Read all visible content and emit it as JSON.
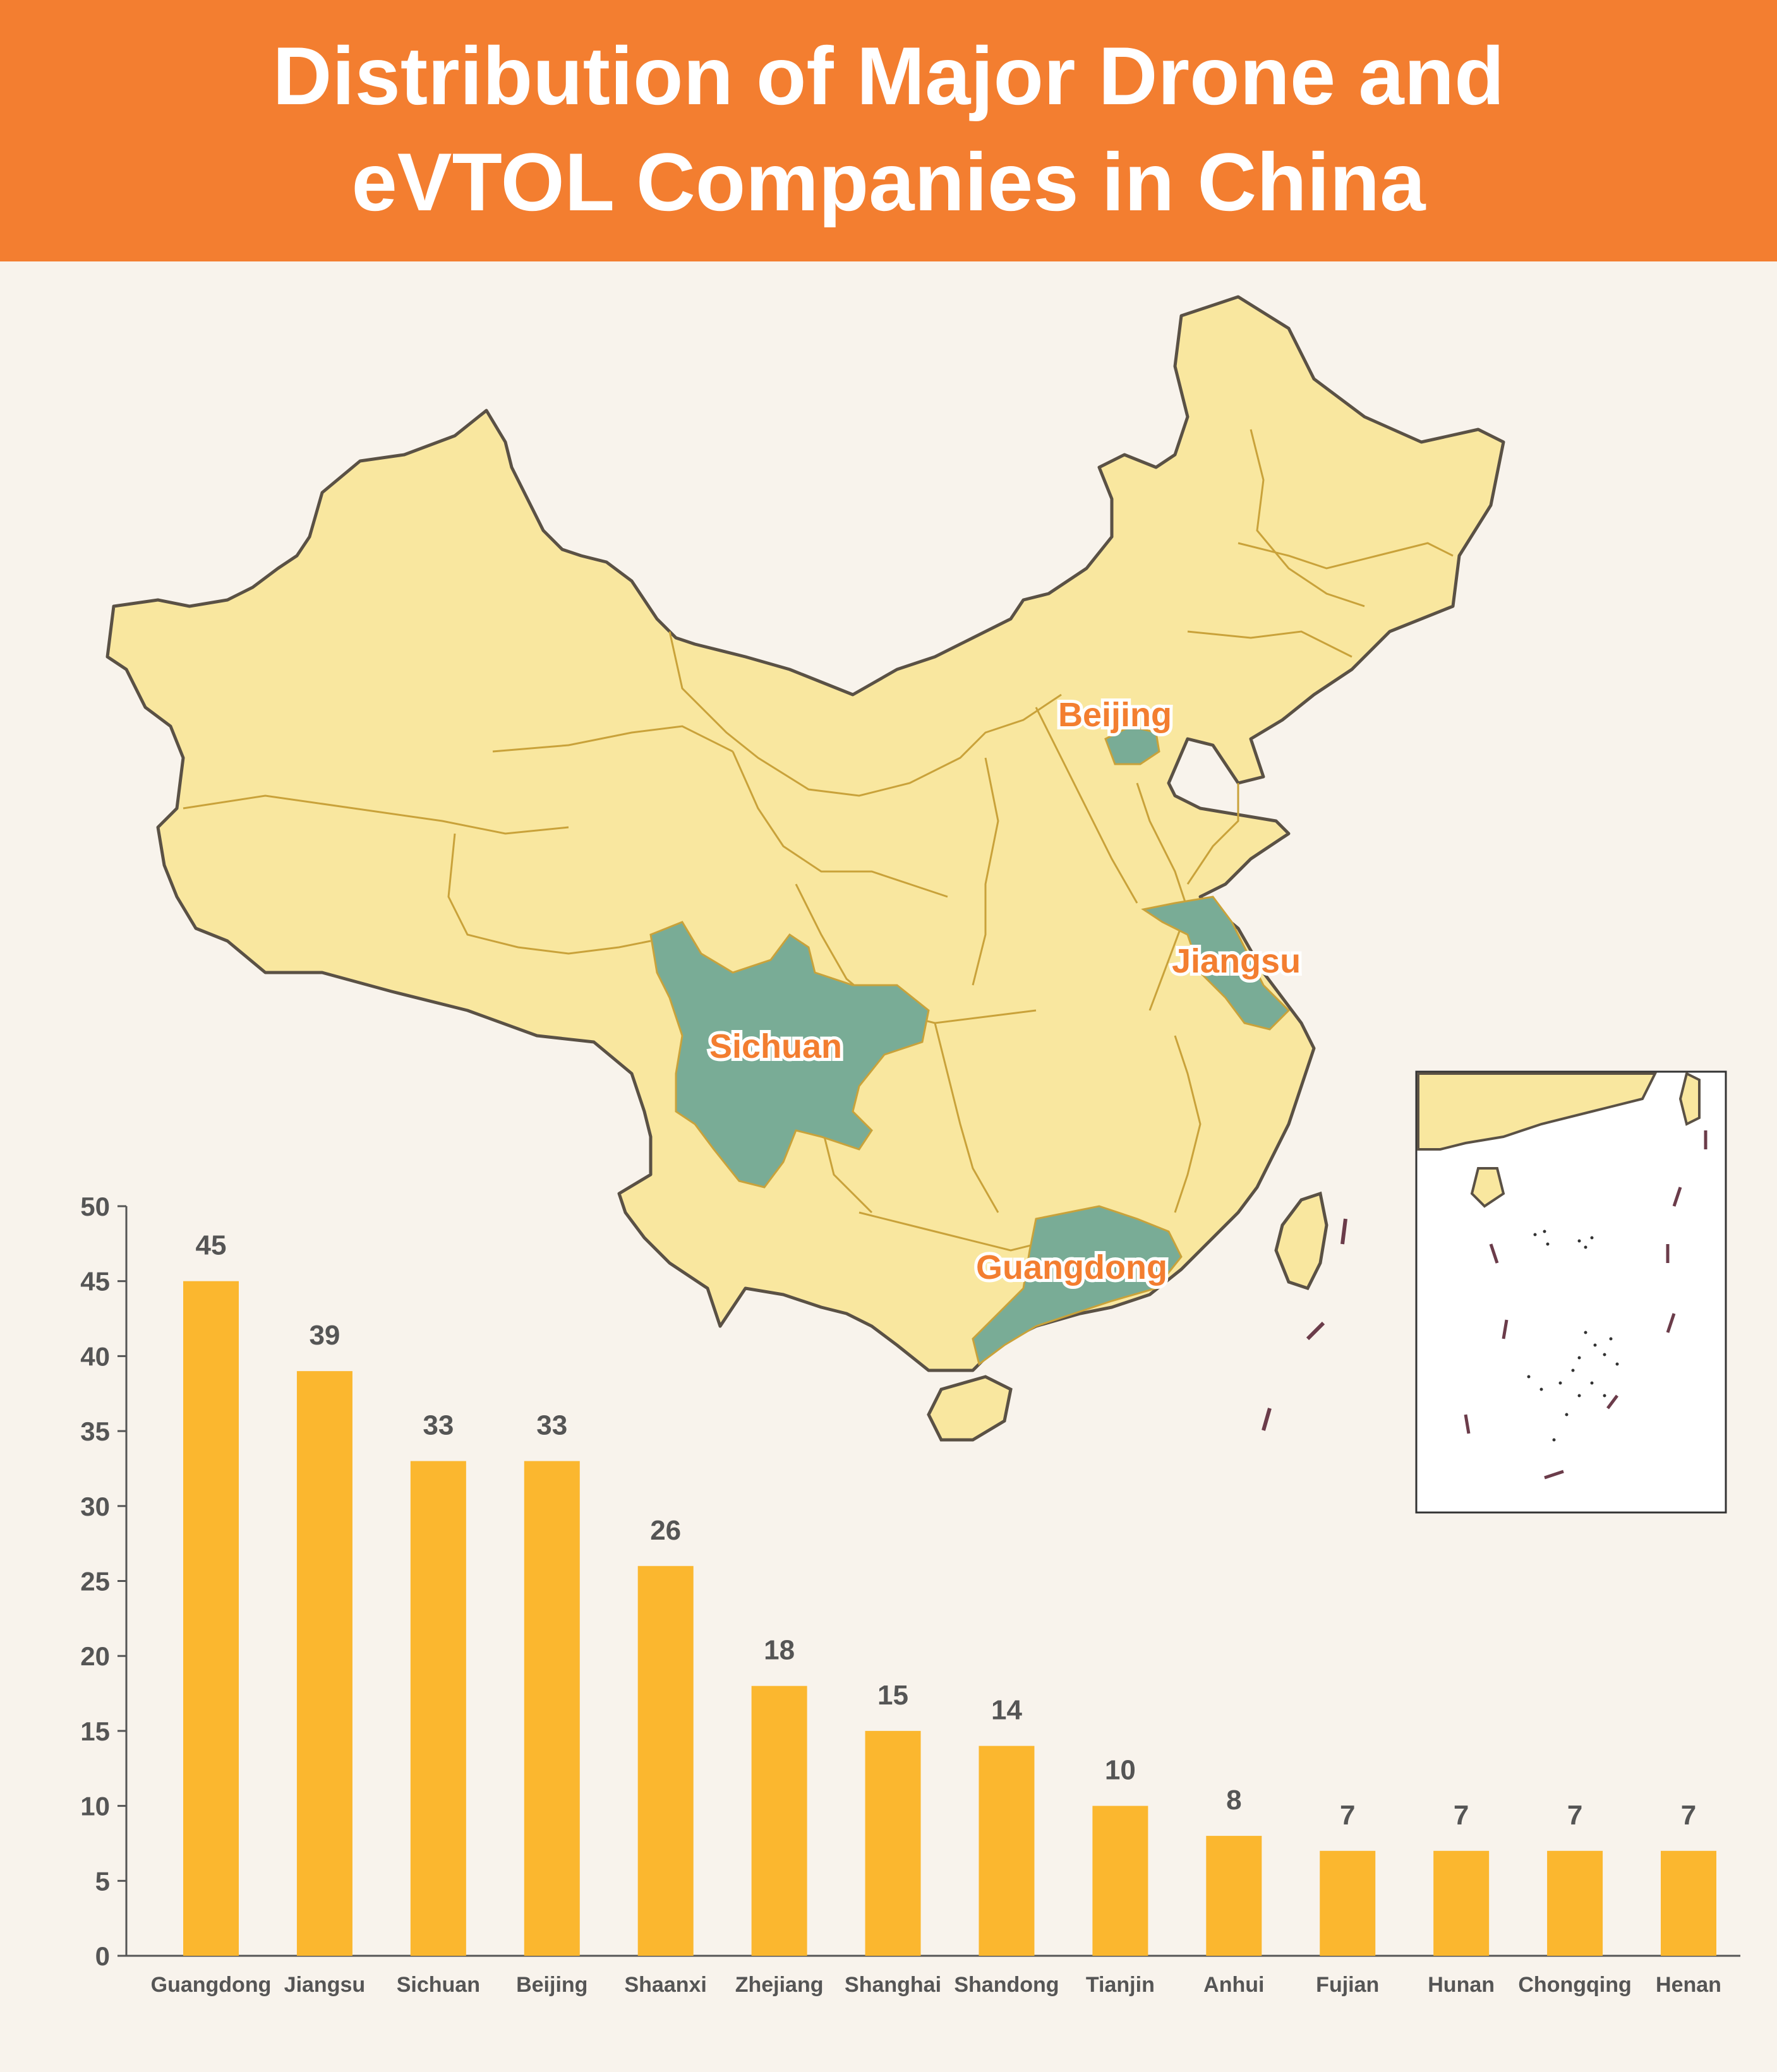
{
  "header": {
    "title_line1": "Distribution of Major Drone and",
    "title_line2": "eVTOL Companies in China"
  },
  "colors": {
    "header_bg": "#f37e30",
    "background": "#f8f3ec",
    "map_fill": "#f9e79f",
    "map_highlight": "#79ac96",
    "map_border": "#c9a23a",
    "bar": "#fbb72f",
    "label_accent": "#f37e30"
  },
  "map": {
    "highlighted_regions": [
      "Beijing",
      "Jiangsu",
      "Sichuan",
      "Guangdong"
    ],
    "labels": {
      "beijing": "Beijing",
      "jiangsu": "Jiangsu",
      "sichuan": "Sichuan",
      "guangdong": "Guangdong"
    }
  },
  "chart_data": {
    "type": "bar",
    "title": "",
    "xlabel": "",
    "ylabel": "",
    "ylim": [
      0,
      50
    ],
    "yticks": [
      0,
      5,
      10,
      15,
      20,
      25,
      30,
      35,
      40,
      45,
      50
    ],
    "grid": false,
    "categories": [
      "Guangdong",
      "Jiangsu",
      "Sichuan",
      "Beijing",
      "Shaanxi",
      "Zhejiang",
      "Shanghai",
      "Shandong",
      "Tianjin",
      "Anhui",
      "Fujian",
      "Hunan",
      "Chongqing",
      "Henan"
    ],
    "values": [
      45,
      39,
      33,
      33,
      26,
      18,
      15,
      14,
      10,
      8,
      7,
      7,
      7,
      7
    ],
    "data_labels": [
      "45",
      "39",
      "33",
      "33",
      "26",
      "18",
      "15",
      "14",
      "10",
      "8",
      "7",
      "7",
      "7",
      "7"
    ]
  }
}
